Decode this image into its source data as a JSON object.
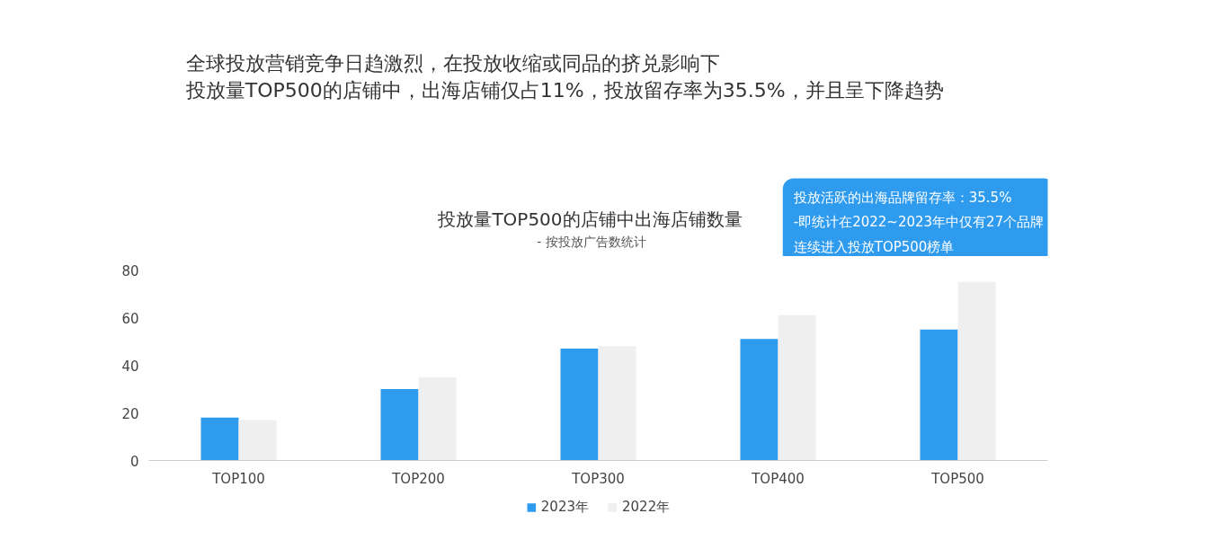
{
  "chart_data": {
    "type": "bar",
    "title": "投放量TOP500的店铺中出海店铺数量",
    "subtitle": "- 按投放广告数统计",
    "annotations": [
      "全球投放营销竞争日趋激烈，在投放收缩或同品的挤兑影响下",
      "投放量TOP500的店铺中，出海店铺仅占11%，投放留存率为35.5%，并且呈下降趋势",
      "投放活跃的出海品牌留存率：35.5%",
      "-即统计在2022~2023年中仅有27个品牌",
      "连续进入投放TOP500榜单"
    ],
    "categories": [
      "TOP100",
      "TOP200",
      "TOP300",
      "TOP400",
      "TOP500"
    ],
    "series": [
      {
        "name": "2023年",
        "color": "#2e9bef",
        "values": [
          18,
          30,
          47,
          51,
          55
        ]
      },
      {
        "name": "2022年",
        "color": "#efefef",
        "values": [
          17,
          35,
          48,
          61,
          75
        ]
      }
    ],
    "ylim": [
      0,
      80
    ],
    "yticks": [
      0,
      20,
      40,
      60,
      80
    ],
    "grid": false,
    "legend": "bottom"
  }
}
